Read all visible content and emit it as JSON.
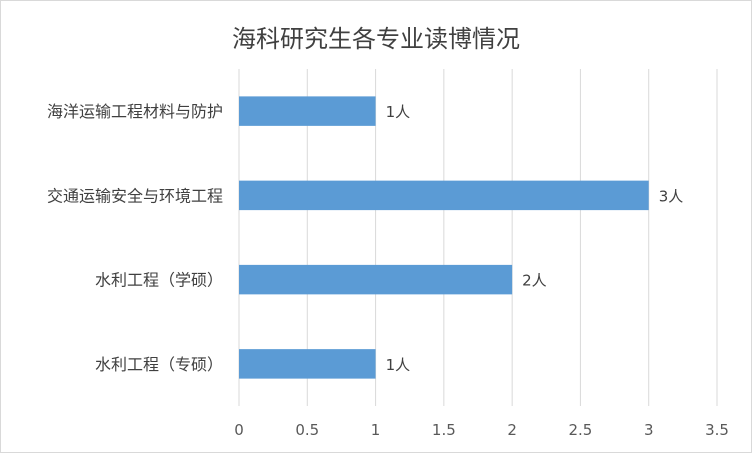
{
  "chart_data": {
    "type": "bar",
    "orientation": "horizontal",
    "title": "海科研究生各专业读博情况",
    "categories": [
      "海洋运输工程材料与防护",
      "交通运输安全与环境工程",
      "水利工程（学硕）",
      "水利工程（专硕）"
    ],
    "values": [
      1,
      3,
      2,
      1
    ],
    "data_labels": [
      "1人",
      "3人",
      "2人",
      "1人"
    ],
    "x_ticks": [
      "0",
      "0.5",
      "1",
      "1.5",
      "2",
      "2.5",
      "3",
      "3.5"
    ],
    "xlim": [
      0,
      3.5
    ],
    "xlabel": "",
    "ylabel": "",
    "grid": "vertical",
    "bar_color": "#5B9BD5",
    "grid_color": "#d9d9d9"
  }
}
